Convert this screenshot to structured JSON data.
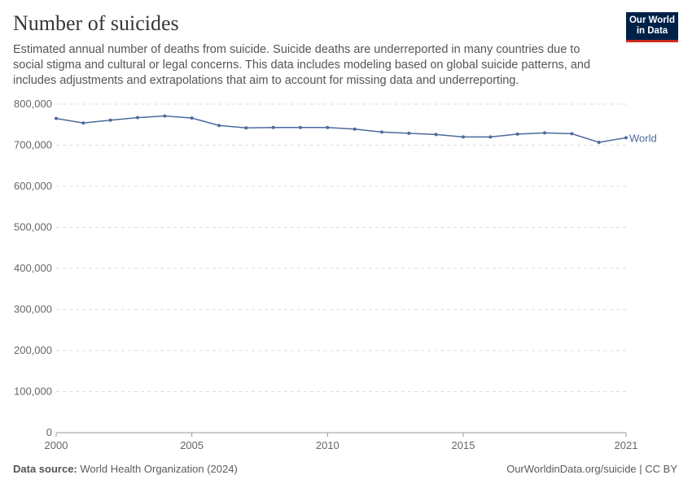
{
  "header": {
    "title": "Number of suicides",
    "subtitle": "Estimated annual number of deaths from suicide. Suicide deaths are underreported in many countries due to social stigma and cultural or legal concerns. This data includes modeling based on global suicide patterns, and includes adjustments and extrapolations that aim to account for missing data and underreporting.",
    "logo": "Our World in Data"
  },
  "footer": {
    "source_label": "Data source:",
    "source": "World Health Organization (2024)",
    "credit": "OurWorldinData.org/suicide | CC BY"
  },
  "chart_data": {
    "type": "line",
    "title": "Number of suicides",
    "xlabel": "",
    "ylabel": "",
    "xlim": [
      2000,
      2021
    ],
    "ylim": [
      0,
      800000
    ],
    "grid": true,
    "x_ticks": [
      "2000",
      "2005",
      "2010",
      "2015",
      "2021"
    ],
    "y_ticks": [
      "0",
      "100,000",
      "200,000",
      "300,000",
      "400,000",
      "500,000",
      "600,000",
      "700,000",
      "800,000"
    ],
    "x": [
      2000,
      2001,
      2002,
      2003,
      2004,
      2005,
      2006,
      2007,
      2008,
      2009,
      2010,
      2011,
      2012,
      2013,
      2014,
      2015,
      2016,
      2017,
      2018,
      2019,
      2020,
      2021
    ],
    "series": [
      {
        "name": "World",
        "color": "#4c6a9c",
        "values": [
          765000,
          754000,
          761000,
          767000,
          771000,
          766000,
          748000,
          742000,
          743000,
          743000,
          743000,
          739000,
          732000,
          729000,
          726000,
          720000,
          720000,
          727000,
          730000,
          728000,
          707000,
          718000
        ]
      }
    ]
  }
}
